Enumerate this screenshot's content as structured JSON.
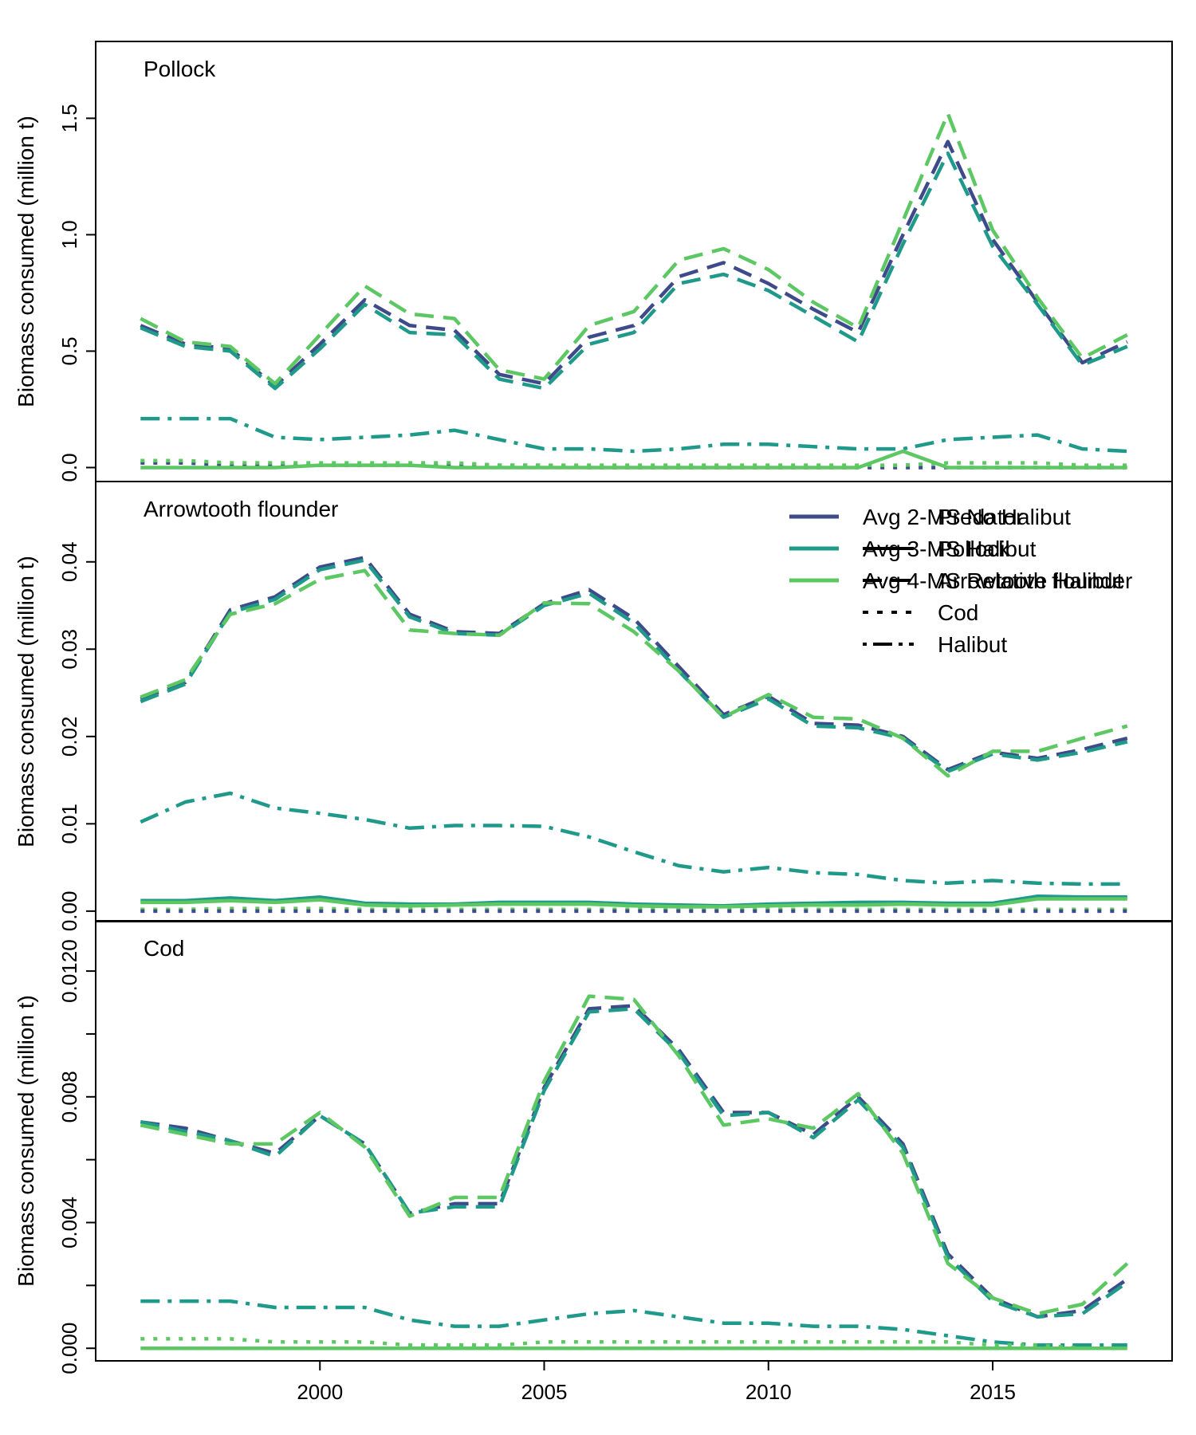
{
  "colors": {
    "avg2": "#3E4A89",
    "avg3": "#1F9A8A",
    "avg4": "#5DC863",
    "axis": "#000000"
  },
  "legend": {
    "models": [
      "Avg 2-MS No Halibut",
      "Avg 3-MS Halibut",
      "Avg 4-MS Relative Halibut"
    ],
    "predators": [
      "Predator",
      "Pollock",
      "Arrowtooth flounder",
      "Cod",
      "Halibut"
    ]
  },
  "chart_data": [
    {
      "type": "line",
      "title": "Pollock",
      "ylabel": "Biomass consumed (million t)",
      "xlim": [
        1995,
        2019
      ],
      "ylim": [
        -0.06,
        1.83
      ],
      "yticks": [
        0.0,
        0.5,
        1.0,
        1.5
      ],
      "ytick_labels": [
        "0.0",
        "0.5",
        "1.0",
        "1.5"
      ],
      "xticks": [
        2000,
        2005,
        2010,
        2015
      ],
      "xtick_labels": [
        "2000",
        "2005",
        "2010",
        "2015"
      ],
      "x": [
        1996,
        1997,
        1998,
        1999,
        2000,
        2001,
        2002,
        2003,
        2004,
        2005,
        2006,
        2007,
        2008,
        2009,
        2010,
        2011,
        2012,
        2013,
        2014,
        2015,
        2016,
        2017,
        2018
      ],
      "series": [
        {
          "model": "Avg 2-MS No Halibut",
          "predator": "Pollock",
          "values": [
            0.61,
            0.53,
            0.51,
            0.35,
            0.53,
            0.72,
            0.61,
            0.59,
            0.4,
            0.36,
            0.56,
            0.61,
            0.82,
            0.88,
            0.79,
            0.68,
            0.58,
            1.0,
            1.4,
            0.98,
            0.71,
            0.45,
            0.54
          ]
        },
        {
          "model": "Avg 3-MS Halibut",
          "predator": "Pollock",
          "values": [
            0.6,
            0.52,
            0.5,
            0.34,
            0.51,
            0.7,
            0.58,
            0.57,
            0.38,
            0.34,
            0.53,
            0.58,
            0.79,
            0.83,
            0.76,
            0.65,
            0.54,
            0.96,
            1.35,
            0.95,
            0.7,
            0.44,
            0.52
          ]
        },
        {
          "model": "Avg 4-MS Relative Halibut",
          "predator": "Pollock",
          "values": [
            0.64,
            0.54,
            0.52,
            0.36,
            0.57,
            0.78,
            0.66,
            0.64,
            0.42,
            0.38,
            0.61,
            0.67,
            0.89,
            0.94,
            0.85,
            0.71,
            0.6,
            1.06,
            1.52,
            1.02,
            0.73,
            0.47,
            0.57
          ]
        },
        {
          "model": "Avg 3-MS Halibut",
          "predator": "Halibut",
          "values": [
            0.21,
            0.21,
            0.21,
            0.13,
            0.12,
            0.13,
            0.14,
            0.16,
            0.12,
            0.08,
            0.08,
            0.07,
            0.08,
            0.1,
            0.1,
            0.09,
            0.08,
            0.08,
            0.12,
            0.13,
            0.14,
            0.08,
            0.07
          ]
        },
        {
          "model": "Avg 2-MS No Halibut",
          "predator": "Cod",
          "values": [
            0.02,
            0.02,
            0.01,
            0.01,
            0.01,
            0.01,
            0.01,
            0.01,
            0.01,
            0.01,
            0.0,
            0.0,
            0.0,
            0.0,
            0.0,
            0.0,
            0.0,
            0.0,
            0.0,
            0.0,
            0.0,
            0.0,
            0.0
          ]
        },
        {
          "model": "Avg 4-MS Relative Halibut",
          "predator": "Cod",
          "values": [
            0.03,
            0.03,
            0.02,
            0.02,
            0.02,
            0.02,
            0.02,
            0.02,
            0.01,
            0.01,
            0.01,
            0.01,
            0.01,
            0.01,
            0.01,
            0.01,
            0.01,
            0.01,
            0.02,
            0.02,
            0.02,
            0.01,
            0.01
          ]
        },
        {
          "model": "Avg 4-MS Relative Halibut",
          "predator": "Arrowtooth flounder",
          "values": [
            0.0,
            0.0,
            0.0,
            0.0,
            0.01,
            0.01,
            0.01,
            0.0,
            0.0,
            0.0,
            0.0,
            0.0,
            0.0,
            0.0,
            0.0,
            0.0,
            0.0,
            0.07,
            0.0,
            0.0,
            0.0,
            0.0,
            0.0
          ]
        }
      ]
    },
    {
      "type": "line",
      "title": "Arrowtooth flounder",
      "ylabel": "Biomass consumed (million t)",
      "xlim": [
        1995,
        2019
      ],
      "ylim": [
        -0.0012,
        0.0492
      ],
      "yticks": [
        0.0,
        0.01,
        0.02,
        0.03,
        0.04
      ],
      "ytick_labels": [
        "0.00",
        "0.01",
        "0.02",
        "0.03",
        "0.04"
      ],
      "xticks": [
        2000,
        2005,
        2010,
        2015
      ],
      "xtick_labels": [
        "2000",
        "2005",
        "2010",
        "2015"
      ],
      "x": [
        1996,
        1997,
        1998,
        1999,
        2000,
        2001,
        2002,
        2003,
        2004,
        2005,
        2006,
        2007,
        2008,
        2009,
        2010,
        2011,
        2012,
        2013,
        2014,
        2015,
        2016,
        2017,
        2018
      ],
      "series": [
        {
          "model": "Avg 2-MS No Halibut",
          "predator": "Pollock",
          "values": [
            0.0243,
            0.0262,
            0.0345,
            0.036,
            0.0394,
            0.0405,
            0.034,
            0.032,
            0.0318,
            0.0352,
            0.0368,
            0.0335,
            0.028,
            0.0225,
            0.0246,
            0.0215,
            0.0213,
            0.02,
            0.0162,
            0.0182,
            0.0175,
            0.0185,
            0.0198
          ]
        },
        {
          "model": "Avg 3-MS Halibut",
          "predator": "Pollock",
          "values": [
            0.024,
            0.026,
            0.0342,
            0.0357,
            0.0391,
            0.0402,
            0.0337,
            0.0318,
            0.0316,
            0.035,
            0.0364,
            0.033,
            0.0275,
            0.0222,
            0.0243,
            0.0212,
            0.021,
            0.0198,
            0.016,
            0.018,
            0.0173,
            0.0182,
            0.0194
          ]
        },
        {
          "model": "Avg 4-MS Relative Halibut",
          "predator": "Pollock",
          "values": [
            0.0245,
            0.0265,
            0.034,
            0.0352,
            0.038,
            0.039,
            0.0322,
            0.0318,
            0.0316,
            0.0353,
            0.0352,
            0.032,
            0.0275,
            0.0222,
            0.0248,
            0.0222,
            0.022,
            0.0198,
            0.0155,
            0.0183,
            0.0183,
            0.0198,
            0.0212
          ]
        },
        {
          "model": "Avg 3-MS Halibut",
          "predator": "Halibut",
          "values": [
            0.0102,
            0.0125,
            0.0135,
            0.0118,
            0.0112,
            0.0105,
            0.0095,
            0.0098,
            0.0098,
            0.0097,
            0.0085,
            0.0068,
            0.0052,
            0.0045,
            0.005,
            0.0044,
            0.0042,
            0.0035,
            0.0032,
            0.0035,
            0.0032,
            0.0031,
            0.0031
          ]
        },
        {
          "model": "Avg 3-MS Halibut",
          "predator": "Arrowtooth flounder",
          "values": [
            0.0012,
            0.0012,
            0.0015,
            0.0012,
            0.0016,
            0.0009,
            0.0008,
            0.0008,
            0.001,
            0.001,
            0.001,
            0.0008,
            0.0007,
            0.0006,
            0.0008,
            0.0009,
            0.001,
            0.001,
            0.0009,
            0.0009,
            0.0017,
            0.0016,
            0.0016
          ]
        },
        {
          "model": "Avg 4-MS Relative Halibut",
          "predator": "Arrowtooth flounder",
          "values": [
            0.001,
            0.001,
            0.0012,
            0.001,
            0.0013,
            0.0007,
            0.0006,
            0.0007,
            0.0008,
            0.0008,
            0.0008,
            0.0006,
            0.0005,
            0.0005,
            0.0006,
            0.0007,
            0.0007,
            0.0008,
            0.0007,
            0.0007,
            0.0014,
            0.0014,
            0.0014
          ]
        },
        {
          "model": "Avg 4-MS Relative Halibut",
          "predator": "Cod",
          "values": [
            0.0002,
            0.0002,
            0.0003,
            0.0003,
            0.0003,
            0.0002,
            0.0002,
            0.0002,
            0.0002,
            0.0002,
            0.0002,
            0.0002,
            0.0002,
            0.0002,
            0.0002,
            0.0002,
            0.0002,
            0.0002,
            0.0002,
            0.0002,
            0.0002,
            0.0002,
            0.0002
          ]
        },
        {
          "model": "Avg 2-MS No Halibut",
          "predator": "Cod",
          "values": [
            0.0,
            0.0,
            0.0,
            0.0,
            0.0,
            0.0,
            0.0,
            0.0,
            0.0,
            0.0,
            0.0,
            0.0,
            0.0,
            0.0,
            0.0,
            0.0,
            0.0,
            0.0,
            0.0,
            0.0,
            0.0,
            0.0,
            0.0
          ]
        }
      ]
    },
    {
      "type": "line",
      "title": "Cod",
      "ylabel": "Biomass consumed (million t)",
      "xlim": [
        1995,
        2019
      ],
      "ylim": [
        -0.0004,
        0.0136
      ],
      "yticks": [
        0.0,
        0.002,
        0.004,
        0.006,
        0.008,
        0.01,
        0.012
      ],
      "ytick_labels": [
        "0.000",
        "",
        "0.004",
        "",
        "0.008",
        "",
        "0.0120"
      ],
      "xticks": [
        2000,
        2005,
        2010,
        2015
      ],
      "xtick_labels": [
        "2000",
        "2005",
        "2010",
        "2015"
      ],
      "x": [
        1996,
        1997,
        1998,
        1999,
        2000,
        2001,
        2002,
        2003,
        2004,
        2005,
        2006,
        2007,
        2008,
        2009,
        2010,
        2011,
        2012,
        2013,
        2014,
        2015,
        2016,
        2017,
        2018
      ],
      "series": [
        {
          "model": "Avg 2-MS No Halibut",
          "predator": "Pollock",
          "values": [
            0.0072,
            0.007,
            0.0066,
            0.0062,
            0.0074,
            0.0065,
            0.0043,
            0.0046,
            0.0046,
            0.0083,
            0.0108,
            0.0109,
            0.0095,
            0.0075,
            0.0075,
            0.0068,
            0.008,
            0.0065,
            0.003,
            0.0016,
            0.001,
            0.0012,
            0.0022
          ]
        },
        {
          "model": "Avg 3-MS Halibut",
          "predator": "Pollock",
          "values": [
            0.0072,
            0.0069,
            0.0066,
            0.0061,
            0.0074,
            0.0065,
            0.0043,
            0.0045,
            0.0045,
            0.0082,
            0.0107,
            0.0108,
            0.0094,
            0.0074,
            0.0075,
            0.0067,
            0.0079,
            0.0064,
            0.0029,
            0.0015,
            0.001,
            0.0011,
            0.0021
          ]
        },
        {
          "model": "Avg 4-MS Relative Halibut",
          "predator": "Pollock",
          "values": [
            0.0071,
            0.0068,
            0.0065,
            0.0065,
            0.0075,
            0.0064,
            0.0042,
            0.0048,
            0.0048,
            0.0085,
            0.0112,
            0.0111,
            0.0093,
            0.0071,
            0.0073,
            0.007,
            0.0081,
            0.0062,
            0.0027,
            0.0016,
            0.0011,
            0.0014,
            0.0027
          ]
        },
        {
          "model": "Avg 3-MS Halibut",
          "predator": "Halibut",
          "values": [
            0.0015,
            0.0015,
            0.0015,
            0.0013,
            0.0013,
            0.0013,
            0.0009,
            0.0007,
            0.0007,
            0.0009,
            0.0011,
            0.0012,
            0.001,
            0.0008,
            0.0008,
            0.0007,
            0.0007,
            0.0006,
            0.0004,
            0.0002,
            0.0001,
            0.0001,
            0.0001
          ]
        },
        {
          "model": "Avg 4-MS Relative Halibut",
          "predator": "Cod",
          "values": [
            0.0003,
            0.0003,
            0.0003,
            0.0002,
            0.0002,
            0.0002,
            0.0001,
            0.0001,
            0.0001,
            0.0002,
            0.0002,
            0.0002,
            0.0002,
            0.0002,
            0.0002,
            0.0002,
            0.0002,
            0.0002,
            0.0002,
            0.0001,
            0.0001,
            0.0,
            0.0
          ]
        },
        {
          "model": "Avg 4-MS Relative Halibut",
          "predator": "Arrowtooth flounder",
          "values": [
            0.0,
            0.0,
            0.0,
            0.0,
            0.0,
            0.0,
            0.0,
            0.0,
            0.0,
            0.0,
            0.0,
            0.0,
            0.0,
            0.0,
            0.0,
            0.0,
            0.0,
            0.0,
            0.0,
            0.0,
            0.0,
            0.0,
            0.0
          ]
        }
      ]
    }
  ]
}
